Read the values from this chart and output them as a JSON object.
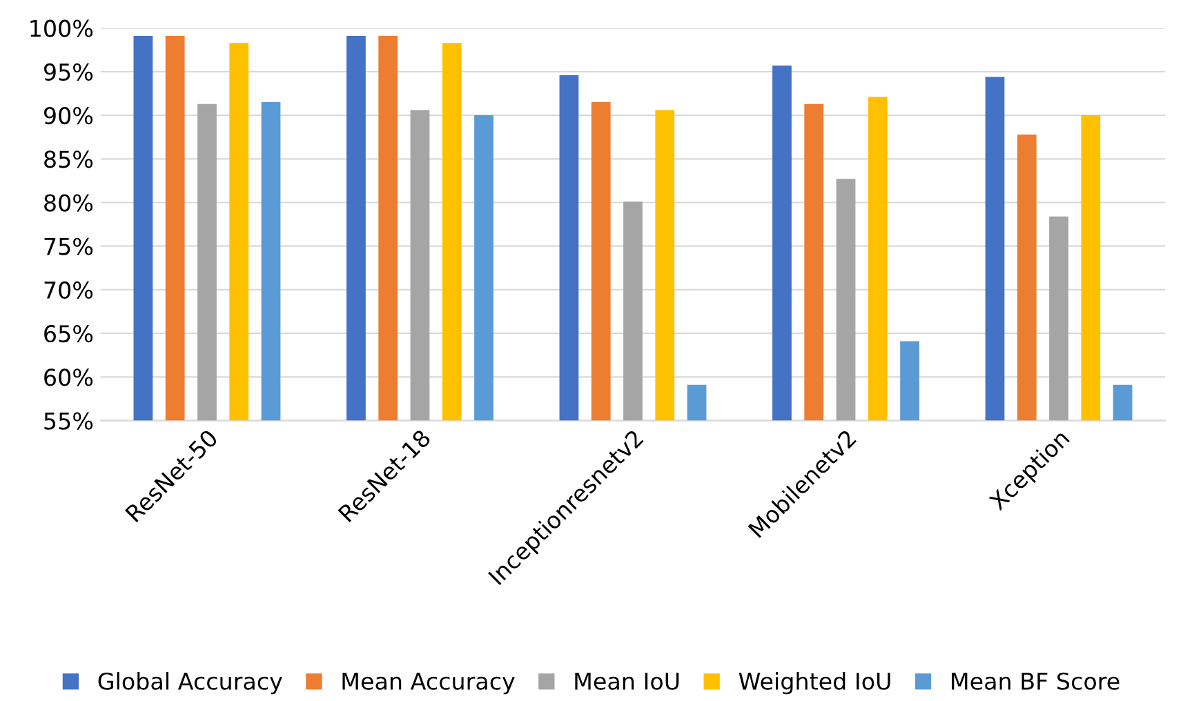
{
  "chart_data": {
    "type": "bar",
    "categories": [
      "ResNet-50",
      "ResNet-18",
      "Inceptionresnetv2",
      "Mobilenetv2",
      "Xception"
    ],
    "series": [
      {
        "name": "Global Accuracy",
        "color": "#4472c4",
        "values": [
          99.1,
          99.1,
          94.6,
          95.7,
          94.4
        ]
      },
      {
        "name": "Mean Accuracy",
        "color": "#ed7d31",
        "values": [
          99.1,
          99.1,
          91.5,
          91.3,
          87.8
        ]
      },
      {
        "name": "Mean IoU",
        "color": "#a5a5a5",
        "values": [
          91.3,
          90.6,
          80.1,
          82.7,
          78.4
        ]
      },
      {
        "name": "Weighted IoU",
        "color": "#ffc000",
        "values": [
          98.3,
          98.3,
          90.6,
          92.1,
          90.0
        ]
      },
      {
        "name": "Mean BF Score",
        "color": "#5b9bd5",
        "values": [
          91.5,
          90.0,
          59.1,
          64.1,
          59.1
        ]
      }
    ],
    "ylim": [
      55,
      100
    ],
    "yticks": [
      {
        "value": 55,
        "label": "55%"
      },
      {
        "value": 60,
        "label": "60%"
      },
      {
        "value": 65,
        "label": "65%"
      },
      {
        "value": 70,
        "label": "70%"
      },
      {
        "value": 75,
        "label": "75%"
      },
      {
        "value": 80,
        "label": "80%"
      },
      {
        "value": 85,
        "label": "85%"
      },
      {
        "value": 90,
        "label": "90%"
      },
      {
        "value": 95,
        "label": "95%"
      },
      {
        "value": 100,
        "label": "100%"
      }
    ],
    "grid": "y",
    "legend": "bottom"
  }
}
